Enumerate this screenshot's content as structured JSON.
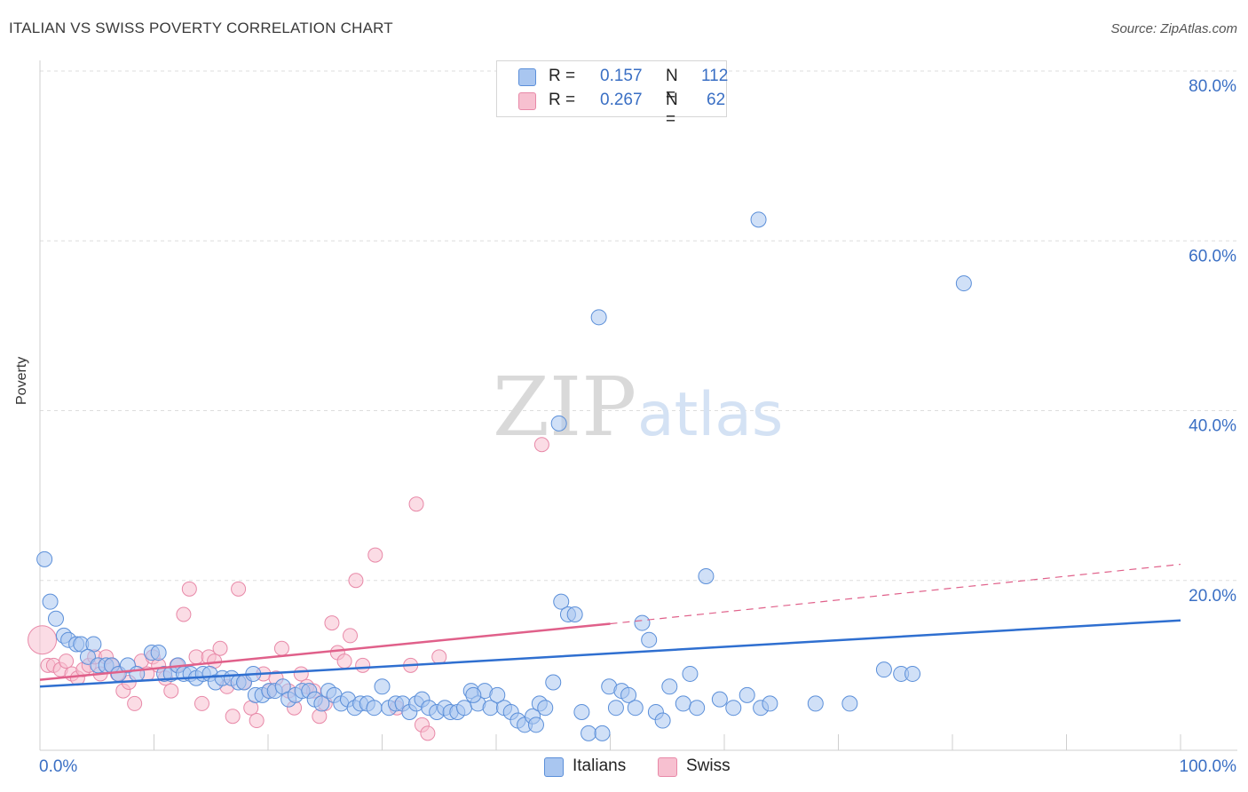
{
  "title": "ITALIAN VS SWISS POVERTY CORRELATION CHART",
  "source": "Source: ZipAtlas.com",
  "watermark": {
    "zip": "ZIP",
    "atlas": "atlas"
  },
  "legend": {
    "italians": {
      "r_label": "R =",
      "r_value": "0.157",
      "n_label": "N =",
      "n_value": "112"
    },
    "swiss": {
      "r_label": "R =",
      "r_value": "0.267",
      "n_label": "N =",
      "n_value": "62"
    }
  },
  "colors": {
    "italians_fill": "#a9c6f0",
    "italians_stroke": "#5b8fd9",
    "italians_line": "#2f6fd0",
    "swiss_fill": "#f7c0d0",
    "swiss_stroke": "#e889a8",
    "swiss_line": "#e0608a",
    "tick_text": "#3a6fc4",
    "grid": "#dddddd"
  },
  "chart_data": {
    "type": "scatter",
    "title": "ITALIAN VS SWISS POVERTY CORRELATION CHART",
    "xlabel": "",
    "ylabel": "Poverty",
    "xlim": [
      0,
      100
    ],
    "ylim": [
      0,
      80
    ],
    "x_tick_labels": [
      "0.0%",
      "100.0%"
    ],
    "y_ticks": [
      20,
      40,
      60,
      80
    ],
    "y_tick_labels": [
      "20.0%",
      "40.0%",
      "60.0%",
      "80.0%"
    ],
    "series": [
      {
        "name": "Italians",
        "r": 0.157,
        "n": 112,
        "trend": {
          "x": [
            0,
            100
          ],
          "y": [
            7.5,
            15.3
          ],
          "dashed_after": null
        },
        "points": [
          [
            0.4,
            22.5
          ],
          [
            0.9,
            17.5
          ],
          [
            1.4,
            15.5
          ],
          [
            2.1,
            13.5
          ],
          [
            2.5,
            13
          ],
          [
            3.2,
            12.5
          ],
          [
            3.6,
            12.5
          ],
          [
            4.7,
            12.5
          ],
          [
            4.2,
            11
          ],
          [
            5.1,
            10
          ],
          [
            5.8,
            10
          ],
          [
            6.3,
            10
          ],
          [
            6.9,
            9
          ],
          [
            7.7,
            10
          ],
          [
            8.5,
            9
          ],
          [
            9.8,
            11.5
          ],
          [
            10.4,
            11.5
          ],
          [
            10.9,
            9
          ],
          [
            11.5,
            9
          ],
          [
            12.1,
            10
          ],
          [
            12.6,
            9
          ],
          [
            13.2,
            9
          ],
          [
            13.7,
            8.5
          ],
          [
            14.3,
            9
          ],
          [
            14.9,
            9
          ],
          [
            15.4,
            8
          ],
          [
            16.0,
            8.5
          ],
          [
            16.8,
            8.5
          ],
          [
            17.4,
            8
          ],
          [
            17.9,
            8
          ],
          [
            18.7,
            9
          ],
          [
            18.9,
            6.5
          ],
          [
            19.5,
            6.5
          ],
          [
            20.1,
            7
          ],
          [
            20.6,
            7
          ],
          [
            21.3,
            7.5
          ],
          [
            21.8,
            6
          ],
          [
            22.4,
            6.5
          ],
          [
            23.0,
            7
          ],
          [
            23.6,
            7
          ],
          [
            24.1,
            6
          ],
          [
            24.7,
            5.5
          ],
          [
            25.3,
            7
          ],
          [
            25.8,
            6.5
          ],
          [
            26.4,
            5.5
          ],
          [
            27.0,
            6
          ],
          [
            27.6,
            5
          ],
          [
            28.1,
            5.5
          ],
          [
            28.7,
            5.5
          ],
          [
            29.3,
            5
          ],
          [
            30.0,
            7.5
          ],
          [
            30.6,
            5
          ],
          [
            31.2,
            5.5
          ],
          [
            31.8,
            5.5
          ],
          [
            32.4,
            4.5
          ],
          [
            33.0,
            5.5
          ],
          [
            33.5,
            6
          ],
          [
            34.1,
            5
          ],
          [
            34.8,
            4.5
          ],
          [
            35.5,
            5
          ],
          [
            36.0,
            4.5
          ],
          [
            36.6,
            4.5
          ],
          [
            37.2,
            5
          ],
          [
            37.8,
            7
          ],
          [
            38.4,
            5.5
          ],
          [
            39.0,
            7
          ],
          [
            39.5,
            5
          ],
          [
            40.1,
            6.5
          ],
          [
            40.7,
            5
          ],
          [
            41.3,
            4.5
          ],
          [
            41.9,
            3.5
          ],
          [
            42.5,
            3
          ],
          [
            43.2,
            4
          ],
          [
            43.8,
            5.5
          ],
          [
            44.3,
            5
          ],
          [
            45.0,
            8
          ],
          [
            45.7,
            17.5
          ],
          [
            46.3,
            16
          ],
          [
            46.9,
            16
          ],
          [
            47.5,
            4.5
          ],
          [
            48.1,
            2
          ],
          [
            49.3,
            2
          ],
          [
            49.9,
            7.5
          ],
          [
            50.5,
            5
          ],
          [
            51.0,
            7
          ],
          [
            51.6,
            6.5
          ],
          [
            52.2,
            5
          ],
          [
            52.8,
            15
          ],
          [
            53.4,
            13
          ],
          [
            54.0,
            4.5
          ],
          [
            54.6,
            3.5
          ],
          [
            55.2,
            7.5
          ],
          [
            56.4,
            5.5
          ],
          [
            57.0,
            9
          ],
          [
            57.6,
            5
          ],
          [
            58.4,
            20.5
          ],
          [
            59.6,
            6
          ],
          [
            60.8,
            5
          ],
          [
            62.0,
            6.5
          ],
          [
            63.2,
            5
          ],
          [
            63.0,
            62.5
          ],
          [
            74.0,
            9.5
          ],
          [
            75.5,
            9
          ],
          [
            49.0,
            51
          ],
          [
            81.0,
            55
          ],
          [
            68.0,
            5.5
          ],
          [
            76.5,
            9
          ],
          [
            71.0,
            5.5
          ],
          [
            43.5,
            3
          ],
          [
            45.5,
            38.5
          ],
          [
            38.0,
            6.5
          ],
          [
            64.0,
            5.5
          ]
        ]
      },
      {
        "name": "Swiss",
        "r": 0.267,
        "n": 62,
        "trend": {
          "x": [
            0,
            50
          ],
          "y": [
            8.3,
            14.9
          ],
          "dashed_after": 50,
          "dashed_to": {
            "x": 100,
            "y": 21.9
          }
        },
        "points": [
          [
            0.2,
            13
          ],
          [
            0.7,
            10
          ],
          [
            1.2,
            10
          ],
          [
            1.8,
            9.5
          ],
          [
            2.3,
            10.5
          ],
          [
            2.8,
            9
          ],
          [
            3.3,
            8.5
          ],
          [
            3.8,
            9.5
          ],
          [
            4.3,
            10
          ],
          [
            4.8,
            11
          ],
          [
            5.3,
            9
          ],
          [
            5.8,
            11
          ],
          [
            6.3,
            10
          ],
          [
            6.8,
            9
          ],
          [
            7.3,
            7
          ],
          [
            7.8,
            8
          ],
          [
            8.3,
            5.5
          ],
          [
            8.9,
            10.5
          ],
          [
            9.4,
            9
          ],
          [
            9.9,
            11
          ],
          [
            10.4,
            10
          ],
          [
            11.0,
            8.5
          ],
          [
            11.5,
            7
          ],
          [
            12.0,
            10
          ],
          [
            12.6,
            16
          ],
          [
            13.1,
            19
          ],
          [
            13.7,
            11
          ],
          [
            14.2,
            5.5
          ],
          [
            14.8,
            11
          ],
          [
            15.3,
            10.5
          ],
          [
            15.8,
            12
          ],
          [
            16.4,
            7.5
          ],
          [
            16.9,
            4
          ],
          [
            17.4,
            19
          ],
          [
            17.9,
            8
          ],
          [
            18.5,
            5
          ],
          [
            19.0,
            3.5
          ],
          [
            19.6,
            9
          ],
          [
            20.1,
            7
          ],
          [
            20.7,
            8.5
          ],
          [
            21.2,
            12
          ],
          [
            21.8,
            7
          ],
          [
            22.3,
            5
          ],
          [
            22.9,
            9
          ],
          [
            23.4,
            7.5
          ],
          [
            24.0,
            7
          ],
          [
            24.5,
            4
          ],
          [
            25.0,
            5.5
          ],
          [
            25.6,
            15
          ],
          [
            26.1,
            11.5
          ],
          [
            26.7,
            10.5
          ],
          [
            27.2,
            13.5
          ],
          [
            27.7,
            20
          ],
          [
            28.3,
            10
          ],
          [
            29.4,
            23
          ],
          [
            31.3,
            5
          ],
          [
            32.5,
            10
          ],
          [
            33.0,
            29
          ],
          [
            33.5,
            3
          ],
          [
            34.0,
            2
          ],
          [
            35.0,
            11
          ],
          [
            44.0,
            36
          ]
        ]
      }
    ]
  },
  "bottom_legend": {
    "italians": "Italians",
    "swiss": "Swiss"
  }
}
